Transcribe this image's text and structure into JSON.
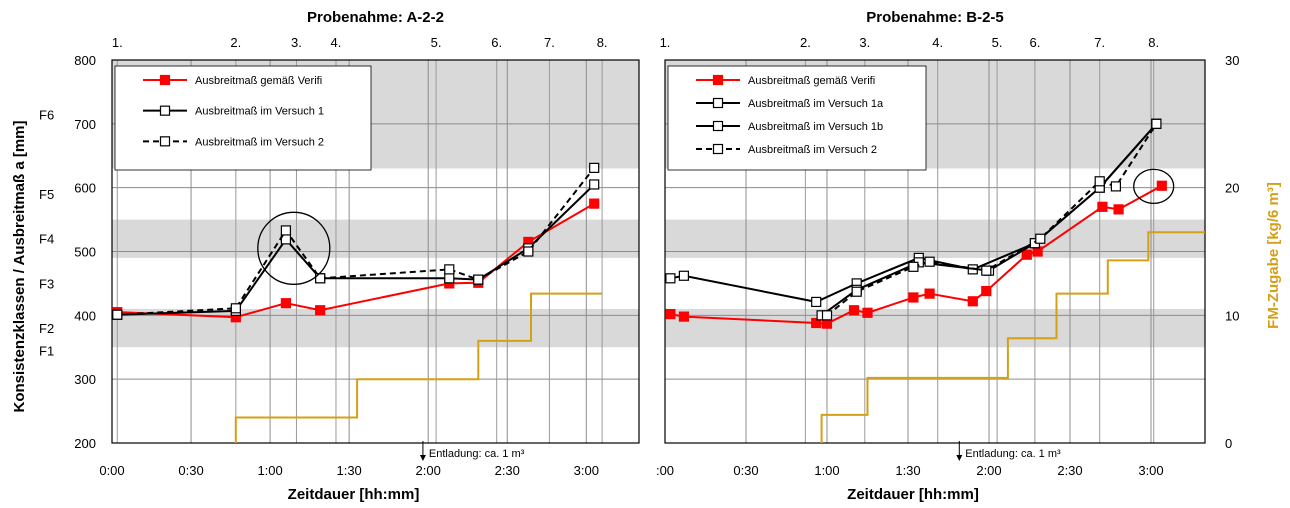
{
  "chart_data": [
    {
      "type": "line",
      "title": "Probenahme: A-2-2",
      "xlabel": "Zeitdauer [hh:mm]",
      "ylabel": "Konsistenzklassen / Ausbreitmaß a [mm]",
      "xlim": [
        0,
        200
      ],
      "ylim": [
        200,
        800
      ],
      "x_ticks": [
        0,
        30,
        60,
        90,
        120,
        150,
        180
      ],
      "x_tick_labels": [
        "0:00",
        "0:30",
        "1:00",
        "1:30",
        "2:00",
        "2:30",
        "3:00"
      ],
      "y_ticks": [
        200,
        300,
        400,
        500,
        600,
        700,
        800
      ],
      "y_tick_labels": [
        "200",
        "300",
        "400",
        "500",
        "600",
        "700",
        "800"
      ],
      "sample_numbers": [
        {
          "label": "1.",
          "x": 2
        },
        {
          "label": "2.",
          "x": 47
        },
        {
          "label": "3.",
          "x": 70
        },
        {
          "label": "4.",
          "x": 85
        },
        {
          "label": "5.",
          "x": 123
        },
        {
          "label": "6.",
          "x": 146
        },
        {
          "label": "7.",
          "x": 166
        },
        {
          "label": "8.",
          "x": 186
        }
      ],
      "consistency_bands": [
        {
          "label": "F1",
          "from": 340,
          "to": 350
        },
        {
          "label": "F2",
          "from": 350,
          "to": 410,
          "shaded": true
        },
        {
          "label": "F3",
          "from": 420,
          "to": 480
        },
        {
          "label": "F4",
          "from": 490,
          "to": 550,
          "shaded": true
        },
        {
          "label": "F5",
          "from": 560,
          "to": 620
        },
        {
          "label": "F6",
          "from": 630,
          "to": 800,
          "shaded": true
        }
      ],
      "series": [
        {
          "name": "Ausbreitmaß gemäß Verifi",
          "color": "#ff0000",
          "marker": "filled-square",
          "dash": "solid",
          "x": [
            2,
            47,
            66,
            79,
            128,
            139,
            158,
            183
          ],
          "y": [
            405,
            397,
            419,
            408,
            450,
            451,
            515,
            575
          ]
        },
        {
          "name": "Ausbreitmaß im Versuch 1",
          "color": "#000000",
          "marker": "open-square",
          "dash": "solid",
          "x": [
            2,
            47,
            66,
            79,
            128,
            139,
            158,
            183
          ],
          "y": [
            401,
            407,
            519,
            458,
            458,
            456,
            505,
            605
          ]
        },
        {
          "name": "Ausbreitmaß im Versuch 2",
          "color": "#000000",
          "marker": "open-square",
          "dash": "dashed",
          "x": [
            2,
            47,
            66,
            79,
            128,
            139,
            158,
            183
          ],
          "y": [
            401,
            411,
            533,
            458,
            472,
            456,
            500,
            631
          ]
        }
      ],
      "fm_dosage": {
        "color": "#d4a017",
        "x": [
          47,
          47,
          93,
          93,
          139,
          139,
          159,
          159,
          186
        ],
        "y": [
          0,
          2,
          2,
          5,
          5,
          8,
          8,
          11.7,
          11.7
        ]
      },
      "annotations": [
        {
          "text": "Entladung:  ca. 1 m³",
          "x": 118
        }
      ],
      "highlight_circles": [
        {
          "x": 69,
          "y": 505
        }
      ],
      "legend_placement": "top-left",
      "grid": true
    },
    {
      "type": "line",
      "title": "Probenahme: B-2-5",
      "xlabel": "Zeitdauer [hh:mm]",
      "ylabel": "FM-Zugabe [kg/6 m³]",
      "xlim": [
        0,
        200
      ],
      "ylim": [
        200,
        800
      ],
      "y2lim": [
        0,
        30
      ],
      "x_ticks": [
        0,
        30,
        60,
        90,
        120,
        150,
        180
      ],
      "x_tick_labels": [
        ":00",
        "0:30",
        "1:00",
        "1:30",
        "2:00",
        "2:30",
        "3:00"
      ],
      "y2_ticks": [
        0,
        10,
        20,
        30
      ],
      "y2_tick_labels": [
        "0",
        "10",
        "20",
        "30"
      ],
      "sample_numbers": [
        {
          "label": "1.",
          "x": 0
        },
        {
          "label": "2.",
          "x": 52
        },
        {
          "label": "3.",
          "x": 74
        },
        {
          "label": "4.",
          "x": 101
        },
        {
          "label": "5.",
          "x": 123
        },
        {
          "label": "6.",
          "x": 137
        },
        {
          "label": "7.",
          "x": 161
        },
        {
          "label": "8.",
          "x": 181
        }
      ],
      "series": [
        {
          "name": "Ausbreitmaß gemäß Verifi",
          "color": "#ff0000",
          "marker": "filled-square",
          "dash": "solid",
          "x": [
            2,
            7,
            56,
            60,
            70,
            75,
            92,
            98,
            114,
            119,
            134,
            138,
            162,
            168,
            184
          ],
          "y": [
            402,
            398,
            388,
            387,
            408,
            404,
            428,
            434,
            422,
            438,
            495,
            500,
            570,
            566,
            603
          ]
        },
        {
          "name": "Ausbreitmaß im Versuch 1a",
          "color": "#000000",
          "marker": "open-square",
          "dash": "solid",
          "x": [
            2,
            7,
            56,
            71,
            94,
            114,
            137,
            161,
            182
          ],
          "y": [
            458,
            462,
            421,
            450,
            490,
            472,
            513,
            600,
            700
          ]
        },
        {
          "name": "Ausbreitmaß im Versuch 1b",
          "color": "#000000",
          "marker": "open-square",
          "dash": "solid",
          "x": [
            58,
            71,
            94,
            120,
            137,
            161,
            182
          ],
          "y": [
            400,
            440,
            483,
            470,
            513,
            600,
            700
          ]
        },
        {
          "name": "Ausbreitmaß im Versuch 2",
          "color": "#000000",
          "marker": "open-square",
          "dash": "dashed",
          "x": [
            60,
            71,
            92,
            98,
            119,
            139,
            161,
            167,
            182
          ],
          "y": [
            400,
            437,
            476,
            484,
            470,
            520,
            610,
            602,
            700
          ]
        }
      ],
      "fm_dosage": {
        "color": "#d4a017",
        "x": [
          58,
          58,
          75,
          75,
          127,
          127,
          145,
          145,
          164,
          164,
          179,
          179,
          200
        ],
        "y": [
          0,
          2.2,
          2.2,
          5.1,
          5.1,
          8.2,
          8.2,
          11.7,
          11.7,
          14.3,
          14.3,
          16.5,
          16.5
        ]
      },
      "annotations": [
        {
          "text": "Entladung:  ca. 1 m³",
          "x": 109
        }
      ],
      "highlight_circles": [
        {
          "x": 181,
          "y": 602
        }
      ],
      "legend_placement": "top-left",
      "grid": true
    }
  ]
}
